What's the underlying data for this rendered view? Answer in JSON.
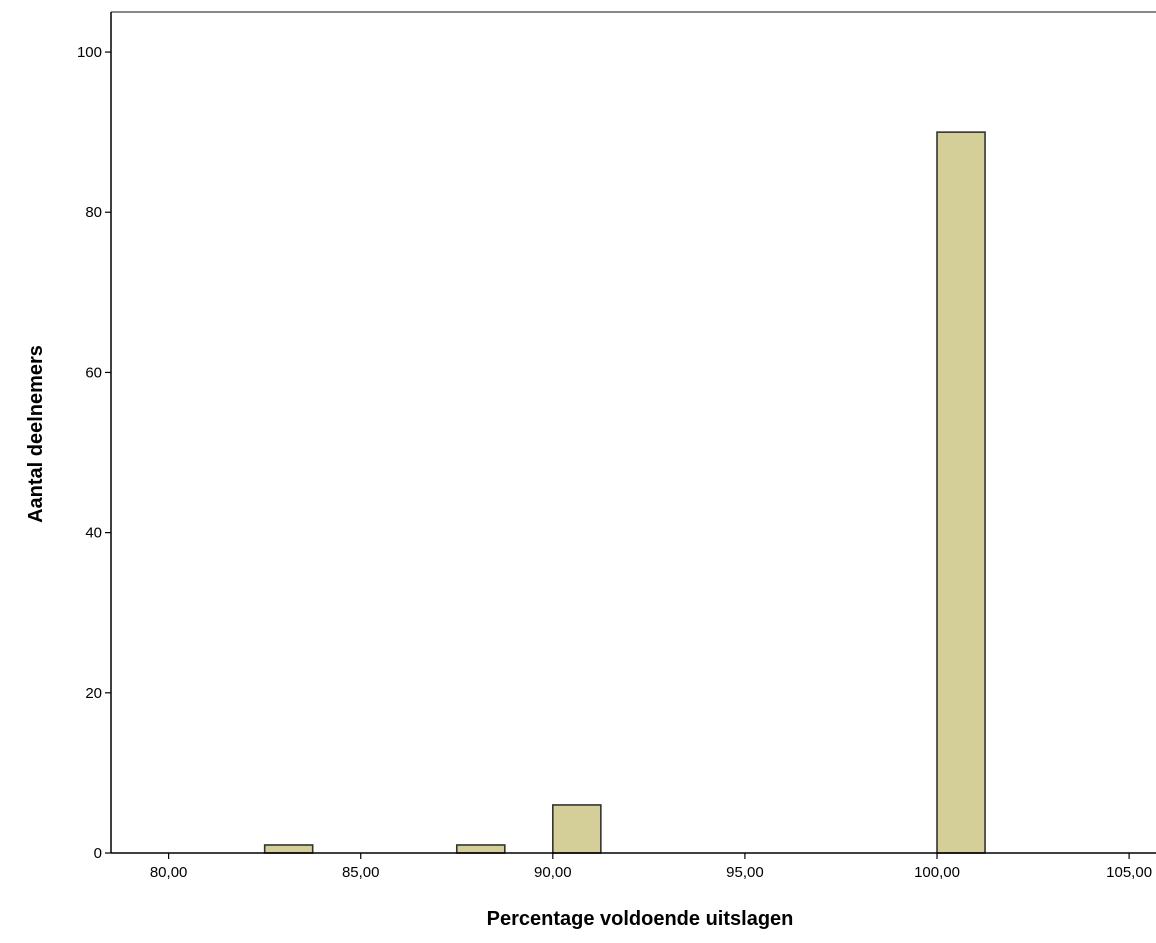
{
  "chart_data": {
    "type": "bar",
    "subtype": "histogram",
    "xlabel": "Percentage voldoende uitslagen",
    "ylabel": "Aantal deelnemers",
    "xlim": [
      78.5,
      105.7
    ],
    "ylim": [
      0,
      105
    ],
    "x_ticks": [
      {
        "value": 80,
        "label": "80,00"
      },
      {
        "value": 85,
        "label": "85,00"
      },
      {
        "value": 90,
        "label": "90,00"
      },
      {
        "value": 95,
        "label": "95,00"
      },
      {
        "value": 100,
        "label": "100,00"
      },
      {
        "value": 105,
        "label": "105,00"
      }
    ],
    "y_ticks": [
      {
        "value": 0,
        "label": "0"
      },
      {
        "value": 20,
        "label": "20"
      },
      {
        "value": 40,
        "label": "40"
      },
      {
        "value": 60,
        "label": "60"
      },
      {
        "value": 80,
        "label": "80"
      },
      {
        "value": 100,
        "label": "100"
      }
    ],
    "bins": [
      {
        "start": 82.5,
        "end": 83.75,
        "count": 1
      },
      {
        "start": 87.5,
        "end": 88.75,
        "count": 1
      },
      {
        "start": 90.0,
        "end": 91.25,
        "count": 6
      },
      {
        "start": 100.0,
        "end": 101.25,
        "count": 90
      }
    ],
    "bar_color": "#d4cf98",
    "bar_edge_color": "#333333",
    "grid": false
  }
}
